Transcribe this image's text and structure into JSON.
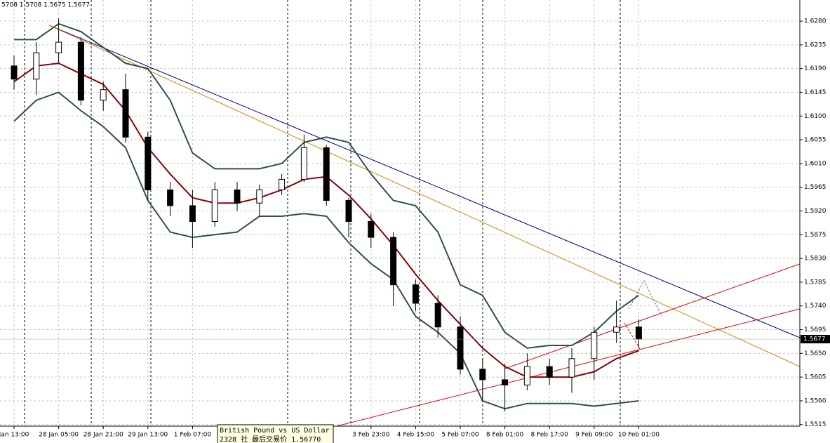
{
  "chart_data": {
    "type": "candlestick",
    "header": "5708 1.5708 1.5675 1.5677",
    "categories": [
      "Jan 13:00",
      null,
      "28 Jan 05:00",
      null,
      "28 Jan 21:00",
      null,
      "29 Jan 13:00",
      null,
      "1 Feb 07:00",
      null,
      null,
      null,
      null,
      null,
      null,
      null,
      "3 Feb 23:00",
      null,
      "4 Feb 15:00",
      null,
      "5 Feb 07:00",
      null,
      "8 Feb 01:00",
      null,
      "8 Feb 17:00",
      null,
      "9 Feb 09:00",
      null,
      "10 Feb 01:00"
    ],
    "open": [
      1.6195,
      1.617,
      1.622,
      1.624,
      1.613,
      1.615,
      1.606,
      1.596,
      1.593,
      1.59,
      1.596,
      1.5935,
      1.596,
      1.598,
      1.604,
      1.594,
      1.59,
      1.587,
      1.578,
      1.5745,
      1.57,
      1.562,
      1.56,
      1.559,
      1.5625,
      1.5605,
      1.564,
      1.569,
      1.57
    ],
    "high": [
      1.6215,
      1.624,
      1.6285,
      1.625,
      1.6165,
      1.618,
      1.607,
      1.5975,
      1.596,
      1.5975,
      1.5975,
      1.597,
      1.599,
      1.6065,
      1.6045,
      1.5945,
      1.5915,
      1.588,
      1.579,
      1.576,
      1.572,
      1.564,
      1.563,
      1.565,
      1.564,
      1.566,
      1.57,
      1.575,
      1.5715
    ],
    "low": [
      1.615,
      1.614,
      1.62,
      1.612,
      1.611,
      1.605,
      1.594,
      1.591,
      1.585,
      1.589,
      1.592,
      1.591,
      1.595,
      1.5975,
      1.593,
      1.587,
      1.585,
      1.574,
      1.573,
      1.568,
      1.561,
      1.556,
      1.554,
      1.558,
      1.559,
      1.5575,
      1.56,
      1.567,
      1.566
    ],
    "close": [
      1.617,
      1.622,
      1.624,
      1.613,
      1.615,
      1.606,
      1.596,
      1.593,
      1.59,
      1.596,
      1.5935,
      1.596,
      1.598,
      1.604,
      1.594,
      1.59,
      1.587,
      1.578,
      1.5745,
      1.57,
      1.562,
      1.56,
      1.559,
      1.5625,
      1.5605,
      1.564,
      1.569,
      1.57,
      1.5677
    ],
    "overlays": [
      {
        "color": "#8b0000",
        "values": [
          1.6165,
          1.6195,
          1.62,
          1.618,
          1.616,
          1.611,
          1.604,
          1.599,
          1.5945,
          1.5935,
          1.5935,
          1.5945,
          1.596,
          1.598,
          1.5985,
          1.595,
          1.5905,
          1.5855,
          1.58,
          1.575,
          1.5705,
          1.566,
          1.5625,
          1.5605,
          1.5605,
          1.5605,
          1.5615,
          1.564,
          1.5655
        ]
      },
      {
        "color": "#2f4f4f",
        "values": [
          1.6245,
          1.6245,
          1.6275,
          1.626,
          1.623,
          1.62,
          1.619,
          1.613,
          1.603,
          1.6,
          1.6,
          1.6,
          1.601,
          1.605,
          1.606,
          1.605,
          1.599,
          1.594,
          1.593,
          1.588,
          1.578,
          1.576,
          1.569,
          1.566,
          1.5665,
          1.5665,
          1.569,
          1.573,
          1.576
        ]
      },
      {
        "color": "#2f4f4f",
        "values": [
          1.609,
          1.613,
          1.6145,
          1.611,
          1.608,
          1.604,
          1.594,
          1.588,
          1.587,
          1.5875,
          1.588,
          1.591,
          1.591,
          1.5915,
          1.591,
          1.586,
          1.582,
          1.579,
          1.572,
          1.569,
          1.565,
          1.556,
          1.5545,
          1.5555,
          1.5555,
          1.5555,
          1.555,
          1.5555,
          1.556
        ]
      }
    ],
    "ylim": [
      1.5512,
      1.632
    ],
    "yticks": [
      {
        "value": 1.628,
        "label": "1.6280"
      },
      1.6235,
      {
        "value": 1.619,
        "label": "1.6190"
      },
      1.6145,
      {
        "value": 1.61,
        "label": "1.6100"
      },
      1.6055,
      {
        "value": 1.601,
        "label": "1.6010"
      },
      1.5965,
      {
        "value": 1.592,
        "label": "1.5920"
      },
      1.5875,
      {
        "value": 1.583,
        "label": "1.5830"
      },
      1.5785,
      {
        "value": 1.574,
        "label": "1.5740"
      },
      1.5695,
      {
        "value": 1.565,
        "label": "1.5650"
      },
      1.5605,
      {
        "value": 1.556,
        "label": "1.5560"
      },
      1.5515
    ],
    "current_price": 1.5677,
    "grid": true,
    "tooltip": [
      "British Pound vs US Dollar",
      "2328 社 最后交易价 1.56770"
    ]
  }
}
